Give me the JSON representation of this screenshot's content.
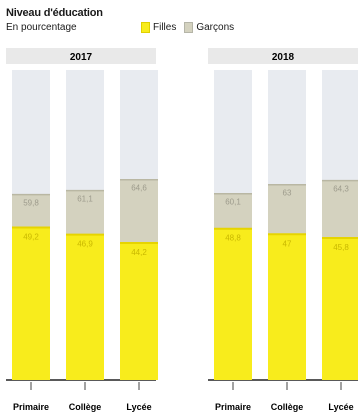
{
  "chart_data": {
    "type": "bar",
    "title": "Niveau d'éducation",
    "subtitle": "En pourcentage",
    "legend": [
      "Filles",
      "Garçons"
    ],
    "colors": {
      "filles": "#f8ec1c",
      "garcons": "#d4d2bf",
      "rest": "#e8ebf0",
      "header": "#e9e9e9"
    },
    "ylim": [
      0,
      100
    ],
    "panels": [
      {
        "title": "2017",
        "categories": [
          "Primaire",
          "Collège",
          "Lycée"
        ],
        "series": [
          {
            "name": "Filles",
            "values": [
              49.2,
              46.9,
              44.2
            ],
            "labels": [
              "49,2",
              "46,9",
              "44,2"
            ]
          },
          {
            "name": "Garçons",
            "values": [
              59.8,
              61.1,
              64.6
            ],
            "labels": [
              "59,8",
              "61,1",
              "64,6"
            ]
          }
        ]
      },
      {
        "title": "2018",
        "categories": [
          "Primaire",
          "Collège",
          "Lycée"
        ],
        "series": [
          {
            "name": "Filles",
            "values": [
              48.8,
              47.0,
              45.8
            ],
            "labels": [
              "48,8",
              "47",
              "45,8"
            ]
          },
          {
            "name": "Garçons",
            "values": [
              60.1,
              63.0,
              64.3
            ],
            "labels": [
              "60,1",
              "63",
              "64,3"
            ]
          }
        ]
      }
    ]
  }
}
